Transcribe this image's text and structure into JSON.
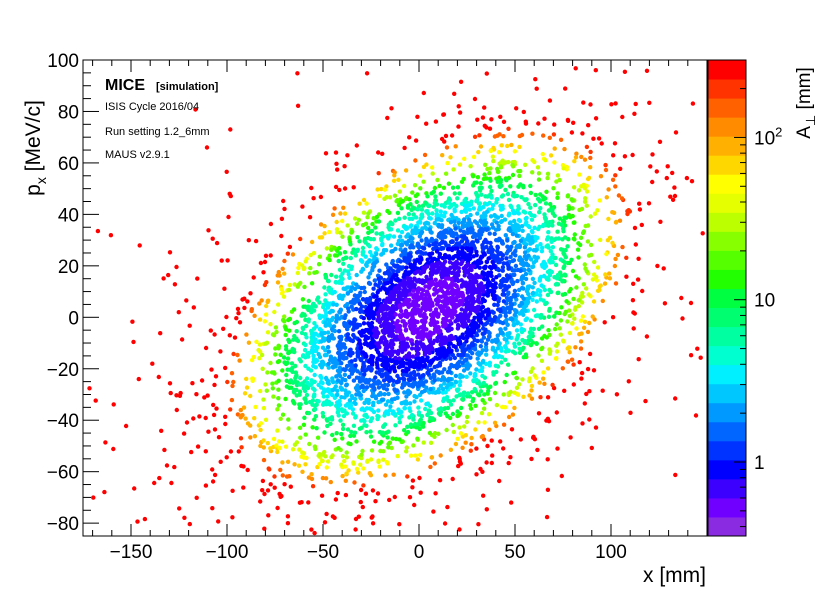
{
  "chart_data": {
    "type": "scatter",
    "title": "",
    "xlabel": "x [mm]",
    "ylabel": "p_x [MeV/c]",
    "xlim": [
      -175,
      150
    ],
    "ylim": [
      -85,
      100
    ],
    "x_ticks": [
      -150,
      -100,
      -50,
      0,
      50,
      100
    ],
    "x_tick_labels": [
      "−150",
      "−100",
      "−50",
      "0",
      "50",
      "100"
    ],
    "y_ticks": [
      -80,
      -60,
      -40,
      -20,
      0,
      20,
      40,
      60,
      80,
      100
    ],
    "y_tick_labels": [
      "−80",
      "−60",
      "−40",
      "−20",
      "0",
      "20",
      "40",
      "60",
      "80",
      "100"
    ],
    "grid": false,
    "colorbar": {
      "label": "A_⊥ [mm]",
      "scale": "log",
      "range": [
        0.35,
        300
      ],
      "ticks": [
        1,
        10,
        100
      ],
      "tick_labels": [
        "1",
        "10",
        "10²"
      ],
      "colors": [
        "#8a2be2",
        "#7000ff",
        "#3c00ff",
        "#0000ff",
        "#0033ff",
        "#0066ff",
        "#0099ff",
        "#00c8ff",
        "#00f0ff",
        "#00ffd0",
        "#00ffa0",
        "#00ff70",
        "#00ff40",
        "#22ff00",
        "#55ff00",
        "#88ff00",
        "#bbff00",
        "#e6ff00",
        "#ffff00",
        "#ffd700",
        "#ffb000",
        "#ff8c00",
        "#ff6000",
        "#ff3300",
        "#ff0000"
      ]
    },
    "distribution": {
      "description": "tilted elliptical beam, core near origin (small A, blue/purple), halo out to large A (orange/red)",
      "center": [
        5,
        3
      ],
      "x_sigma": 42,
      "px_sigma": 28,
      "correlation": 0.45,
      "core_amplitude_mm": 0.5,
      "halo_amplitude_mm": 250
    }
  },
  "annotation": {
    "experiment": "MICE",
    "tag": "[simulation]",
    "lines": [
      "ISIS Cycle 2016/04",
      "Run setting 1.2_6mm",
      "MAUS v2.9.1"
    ]
  }
}
